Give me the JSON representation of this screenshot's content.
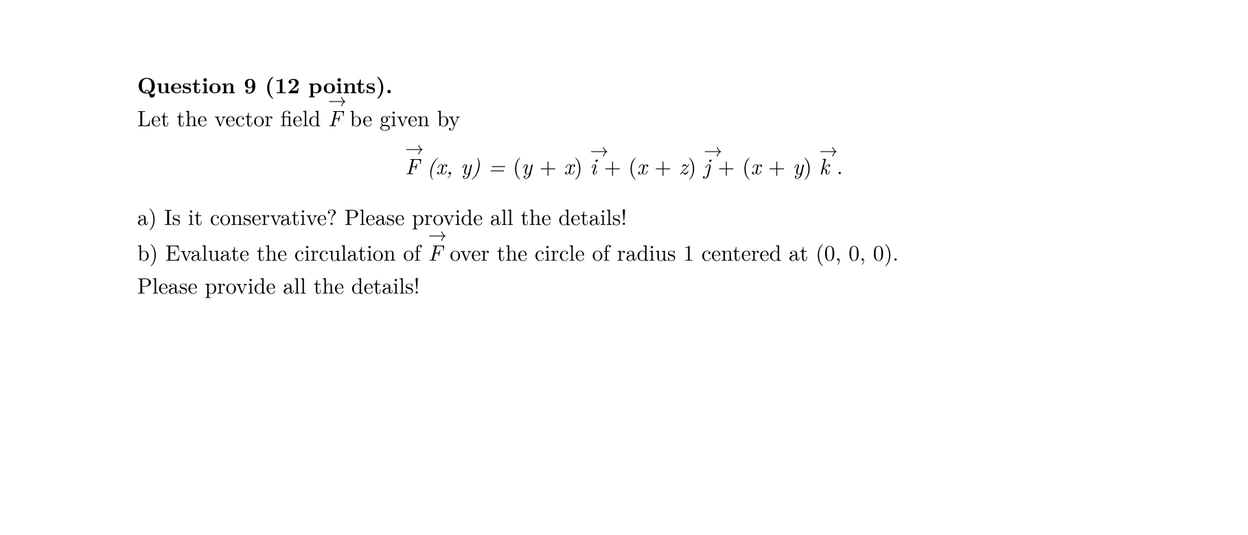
{
  "question": {
    "title_label": "Question 9 (12 points).",
    "intro_prefix": "Let the vector field ",
    "intro_suffix": " be given by"
  },
  "equation": {
    "lhs_var": "F",
    "lhs_args": "(x, y) = ",
    "term1_open": "(",
    "term1_a": "y",
    "term1_plus": " + ",
    "term1_b": "x",
    "term1_close": ") ",
    "vec_i": "i",
    "plus1": " + (",
    "term2_a": "x",
    "term2_plus": " + ",
    "term2_b": "z",
    "term2_close": ") ",
    "vec_j": "j",
    "plus2": " + (",
    "term3_a": "x",
    "term3_plus": " + ",
    "term3_b": "y",
    "term3_close": ") ",
    "vec_k": "k",
    "period": " ."
  },
  "parts": {
    "a": "a) Is it conservative? Please provide all the details!",
    "b_prefix": "b) Evaluate the circulation of ",
    "b_suffix": " over the circle of radius 1 centered at (0, 0, 0).",
    "b_line2": "Please provide all the details!"
  },
  "symbols": {
    "F": "F",
    "arrow": "→"
  },
  "style": {
    "font_size_pt": 32,
    "text_color": "#000000",
    "background": "#ffffff"
  }
}
